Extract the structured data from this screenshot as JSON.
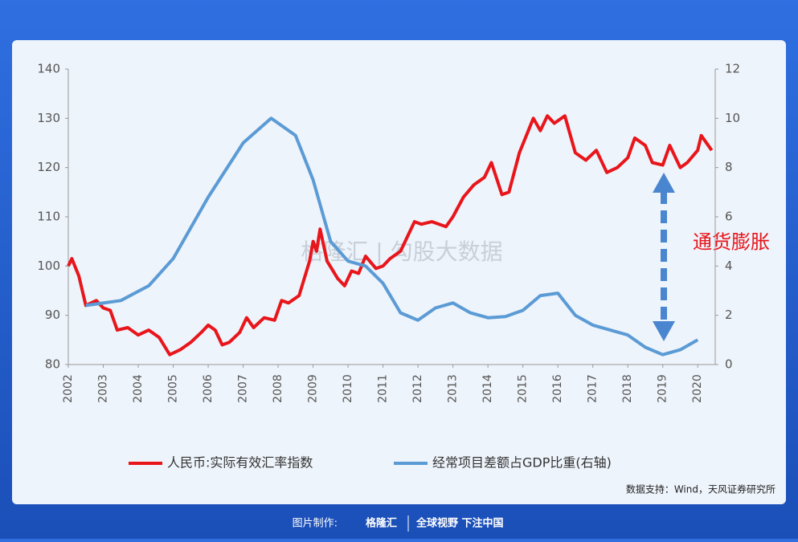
{
  "chart_data": {
    "type": "line",
    "annotation": "通货膨胀",
    "source": "数据支持：Wind，天风证券研究所",
    "watermark": "格隆汇 | 勾股大数据",
    "footer_left": "图片制作:",
    "footer_brand": "格隆汇",
    "footer_right": "全球视野 下注中国",
    "xlim": [
      2002,
      2020.5
    ],
    "xticks": [
      2002,
      2003,
      2004,
      2005,
      2006,
      2007,
      2008,
      2009,
      2010,
      2011,
      2012,
      2013,
      2014,
      2015,
      2016,
      2017,
      2018,
      2019,
      2020
    ],
    "ylim": [
      80,
      140
    ],
    "yticks": [
      80,
      90,
      100,
      110,
      120,
      130,
      140
    ],
    "y2lim": [
      0,
      12
    ],
    "y2ticks": [
      0,
      2,
      4,
      6,
      8,
      10,
      12
    ],
    "series": [
      {
        "name": "人民币:实际有效汇率指数",
        "color": "#e8151b",
        "x": [
          2002.0,
          2002.1,
          2002.3,
          2002.5,
          2002.8,
          2003.0,
          2003.2,
          2003.4,
          2003.7,
          2004.0,
          2004.3,
          2004.6,
          2004.9,
          2005.2,
          2005.5,
          2005.8,
          2006.0,
          2006.2,
          2006.4,
          2006.6,
          2006.9,
          2007.1,
          2007.3,
          2007.6,
          2007.9,
          2008.1,
          2008.3,
          2008.6,
          2008.9,
          2009.0,
          2009.1,
          2009.2,
          2009.4,
          2009.7,
          2009.9,
          2010.1,
          2010.3,
          2010.5,
          2010.8,
          2011.0,
          2011.2,
          2011.5,
          2011.9,
          2012.1,
          2012.4,
          2012.8,
          2013.0,
          2013.3,
          2013.6,
          2013.9,
          2014.1,
          2014.4,
          2014.6,
          2014.9,
          2015.3,
          2015.5,
          2015.7,
          2015.9,
          2016.2,
          2016.5,
          2016.8,
          2017.1,
          2017.4,
          2017.7,
          2018.0,
          2018.2,
          2018.5,
          2018.7,
          2019.0,
          2019.2,
          2019.5,
          2019.7,
          2020.0,
          2020.1,
          2020.4
        ],
        "values": [
          100,
          101.5,
          98,
          92,
          93,
          91.5,
          91,
          87,
          87.5,
          86,
          87,
          85.5,
          82,
          83,
          84.5,
          86.5,
          88,
          87,
          84,
          84.5,
          86.5,
          89.5,
          87.5,
          89.5,
          89,
          93,
          92.5,
          94,
          101,
          105,
          103,
          107.5,
          101,
          97.5,
          96,
          99,
          98.5,
          102,
          99.5,
          100,
          101.5,
          103,
          109,
          108.5,
          109,
          108,
          110,
          114,
          116.5,
          118,
          121,
          114.5,
          115,
          123,
          130,
          127.5,
          130.5,
          129,
          130.5,
          123,
          121.5,
          123.5,
          119,
          120,
          122,
          126,
          124.5,
          121,
          120.5,
          124.5,
          120,
          121,
          123.5,
          126.5,
          123.5
        ]
      },
      {
        "name": "经常项目差额占GDP比重(右轴)",
        "color": "#5b9bd5",
        "axis": "y2",
        "x": [
          2002.5,
          2003.5,
          2004.3,
          2005.0,
          2006.0,
          2007.0,
          2007.8,
          2008.5,
          2009.0,
          2009.5,
          2010.0,
          2010.5,
          2011.0,
          2011.5,
          2012.0,
          2012.5,
          2013.0,
          2013.5,
          2014.0,
          2014.5,
          2015.0,
          2015.5,
          2016.0,
          2016.5,
          2017.0,
          2017.5,
          2018.0,
          2018.5,
          2019.0,
          2019.5,
          2020.0
        ],
        "values": [
          2.4,
          2.6,
          3.2,
          4.3,
          6.8,
          9.0,
          10,
          9.3,
          7.5,
          5.0,
          4.2,
          4.0,
          3.3,
          2.1,
          1.8,
          2.3,
          2.5,
          2.1,
          1.9,
          1.95,
          2.2,
          2.8,
          2.9,
          2.0,
          1.6,
          1.4,
          1.2,
          0.7,
          0.4,
          0.6,
          1.0
        ]
      }
    ]
  }
}
